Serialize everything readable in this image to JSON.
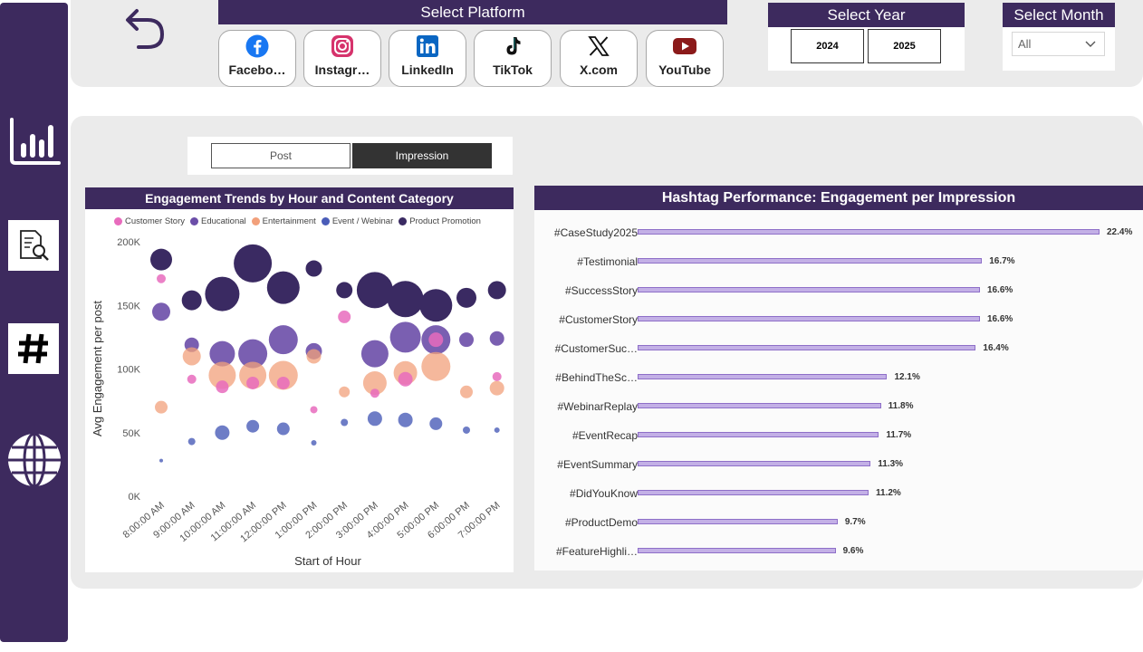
{
  "filters": {
    "platform_header": "Select Platform",
    "platforms": [
      {
        "label": "Facebo…",
        "icon": "facebook-icon"
      },
      {
        "label": "Instagr…",
        "icon": "instagram-icon"
      },
      {
        "label": "LinkedIn",
        "icon": "linkedin-icon"
      },
      {
        "label": "TikTok",
        "icon": "tiktok-icon"
      },
      {
        "label": "X.com",
        "icon": "x-icon"
      },
      {
        "label": "YouTube",
        "icon": "youtube-icon"
      }
    ],
    "year_header": "Select Year",
    "years": [
      "2024",
      "2025"
    ],
    "month_header": "Select Month",
    "month_value": "All"
  },
  "sidebar": {
    "items": [
      {
        "icon": "bar-chart-icon"
      },
      {
        "icon": "document-search-icon"
      },
      {
        "icon": "hashtag-icon"
      },
      {
        "icon": "globe-icon"
      }
    ]
  },
  "toggle": {
    "options": [
      "Post",
      "Impression"
    ],
    "selected": "Impression"
  },
  "colors": {
    "brand": "#3d2a5e",
    "Customer Story": "#e86bbd",
    "Educational": "#6b4ea8",
    "Entertainment": "#f2a07b",
    "Event / Webinar": "#4a5cb8",
    "Product Promotion": "#3a2a62",
    "hashtag_bar": "#c3b0e6"
  },
  "chart_data": [
    {
      "type": "scatter",
      "title": "Engagement Trends by Hour and Content Category",
      "xlabel": "Start of Hour",
      "ylabel": "Avg Engagement per post",
      "yticks": [
        "0K",
        "50K",
        "100K",
        "150K",
        "200K"
      ],
      "ylim": [
        0,
        200000
      ],
      "categories": [
        "8:00:00 AM",
        "9:00:00 AM",
        "10:00:00 AM",
        "11:00:00 AM",
        "12:00:00 PM",
        "1:00:00 PM",
        "2:00:00 PM",
        "3:00:00 PM",
        "4:00:00 PM",
        "5:00:00 PM",
        "6:00:00 PM",
        "7:00:00 PM"
      ],
      "legend": [
        "Customer Story",
        "Educational",
        "Entertainment",
        "Event / Webinar",
        "Product Promotion"
      ],
      "series": [
        {
          "name": "Customer Story",
          "points": [
            [
              0,
              171000,
              5
            ],
            [
              1,
              92000,
              5
            ],
            [
              2,
              86000,
              7
            ],
            [
              3,
              89000,
              7
            ],
            [
              4,
              89000,
              7
            ],
            [
              5,
              68000,
              4
            ],
            [
              6,
              141000,
              7
            ],
            [
              7,
              81000,
              5
            ],
            [
              8,
              92000,
              8
            ],
            [
              9,
              123000,
              8
            ],
            [
              11,
              94000,
              5
            ]
          ]
        },
        {
          "name": "Educational",
          "points": [
            [
              0,
              145000,
              10
            ],
            [
              1,
              119000,
              8
            ],
            [
              2,
              112000,
              14
            ],
            [
              3,
              112000,
              16
            ],
            [
              4,
              123000,
              16
            ],
            [
              5,
              114000,
              9
            ],
            [
              7,
              112000,
              15
            ],
            [
              8,
              125000,
              17
            ],
            [
              9,
              123000,
              16
            ],
            [
              10,
              123000,
              8
            ],
            [
              11,
              124000,
              8
            ]
          ]
        },
        {
          "name": "Entertainment",
          "points": [
            [
              0,
              70000,
              7
            ],
            [
              1,
              110000,
              10
            ],
            [
              2,
              95000,
              15
            ],
            [
              3,
              95000,
              15
            ],
            [
              4,
              95000,
              16
            ],
            [
              5,
              110000,
              8
            ],
            [
              6,
              82000,
              6
            ],
            [
              7,
              89000,
              13
            ],
            [
              8,
              97000,
              13
            ],
            [
              9,
              102000,
              16
            ],
            [
              10,
              82000,
              7
            ],
            [
              11,
              85000,
              8
            ]
          ]
        },
        {
          "name": "Event / Webinar",
          "points": [
            [
              0,
              28000,
              2
            ],
            [
              1,
              43000,
              4
            ],
            [
              2,
              50000,
              8
            ],
            [
              3,
              55000,
              7
            ],
            [
              4,
              53000,
              7
            ],
            [
              5,
              42000,
              3
            ],
            [
              6,
              58000,
              4
            ],
            [
              7,
              61000,
              8
            ],
            [
              8,
              60000,
              8
            ],
            [
              9,
              57000,
              7
            ],
            [
              10,
              52000,
              4
            ],
            [
              11,
              52000,
              3
            ]
          ]
        },
        {
          "name": "Product Promotion",
          "points": [
            [
              0,
              186000,
              12
            ],
            [
              1,
              154000,
              11
            ],
            [
              2,
              159000,
              19
            ],
            [
              3,
              183000,
              21
            ],
            [
              4,
              164000,
              18
            ],
            [
              5,
              179000,
              9
            ],
            [
              6,
              162000,
              9
            ],
            [
              7,
              162000,
              20
            ],
            [
              8,
              155000,
              20
            ],
            [
              9,
              150000,
              18
            ],
            [
              10,
              156000,
              11
            ],
            [
              11,
              162000,
              10
            ]
          ]
        }
      ]
    },
    {
      "type": "bar",
      "orientation": "horizontal",
      "title": "Hashtag Performance: Engagement per Impression",
      "categories": [
        "#CaseStudy2025",
        "#Testimonial",
        "#SuccessStory",
        "#CustomerStory",
        "#CustomerSuc…",
        "#BehindTheSc…",
        "#WebinarReplay",
        "#EventRecap",
        "#EventSummary",
        "#DidYouKnow",
        "#ProductDemo",
        "#FeatureHighli…"
      ],
      "values": [
        22.4,
        16.7,
        16.6,
        16.6,
        16.4,
        12.1,
        11.8,
        11.7,
        11.3,
        11.2,
        9.7,
        9.6
      ],
      "value_labels": [
        "22.4%",
        "16.7%",
        "16.6%",
        "16.6%",
        "16.4%",
        "12.1%",
        "11.8%",
        "11.7%",
        "11.3%",
        "11.2%",
        "9.7%",
        "9.6%"
      ]
    }
  ]
}
